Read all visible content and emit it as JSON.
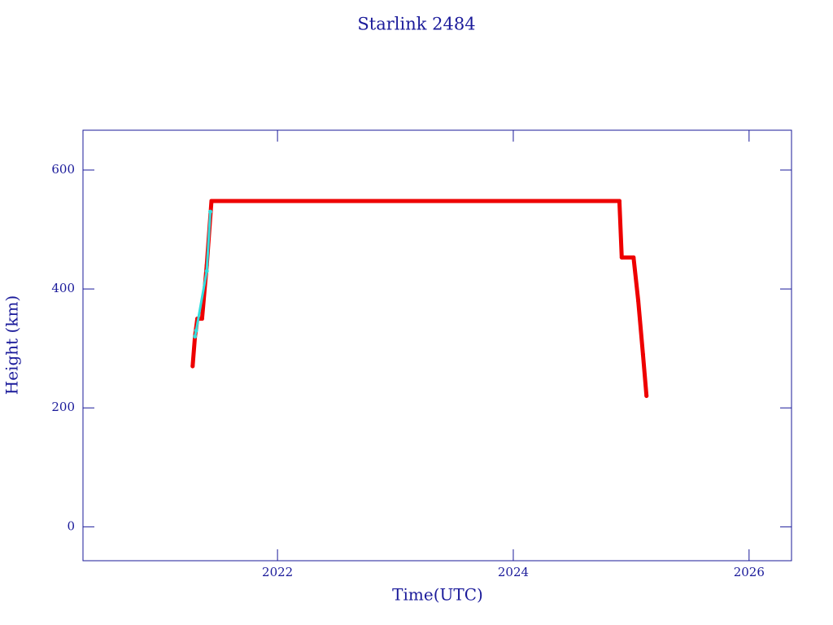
{
  "chart_data": {
    "type": "line",
    "title": "Starlink 2484",
    "x_label": "Time(UTC)",
    "y_label": "Height (km)",
    "xlim": [
      2020.35,
      2026.36
    ],
    "ylim": [
      -57,
      667
    ],
    "xticks": [
      2022,
      2024,
      2026
    ],
    "yticks": [
      0,
      200,
      400,
      600
    ],
    "series": [
      {
        "color": "#ee0000",
        "x": [
          2021.28,
          2021.3,
          2021.32,
          2021.36,
          2021.4,
          2021.44,
          2022.0,
          2023.0,
          2024.0,
          2024.9,
          2024.92,
          2025.02,
          2025.06,
          2025.1,
          2025.13
        ],
        "values": [
          270,
          320,
          350,
          350,
          440,
          548,
          548,
          548,
          548,
          548,
          453,
          453,
          380,
          290,
          220
        ]
      },
      {
        "color": "#33dddd",
        "x": [
          2021.3,
          2021.31,
          2021.4,
          2021.43
        ],
        "values": [
          320,
          330,
          430,
          530
        ]
      }
    ]
  }
}
